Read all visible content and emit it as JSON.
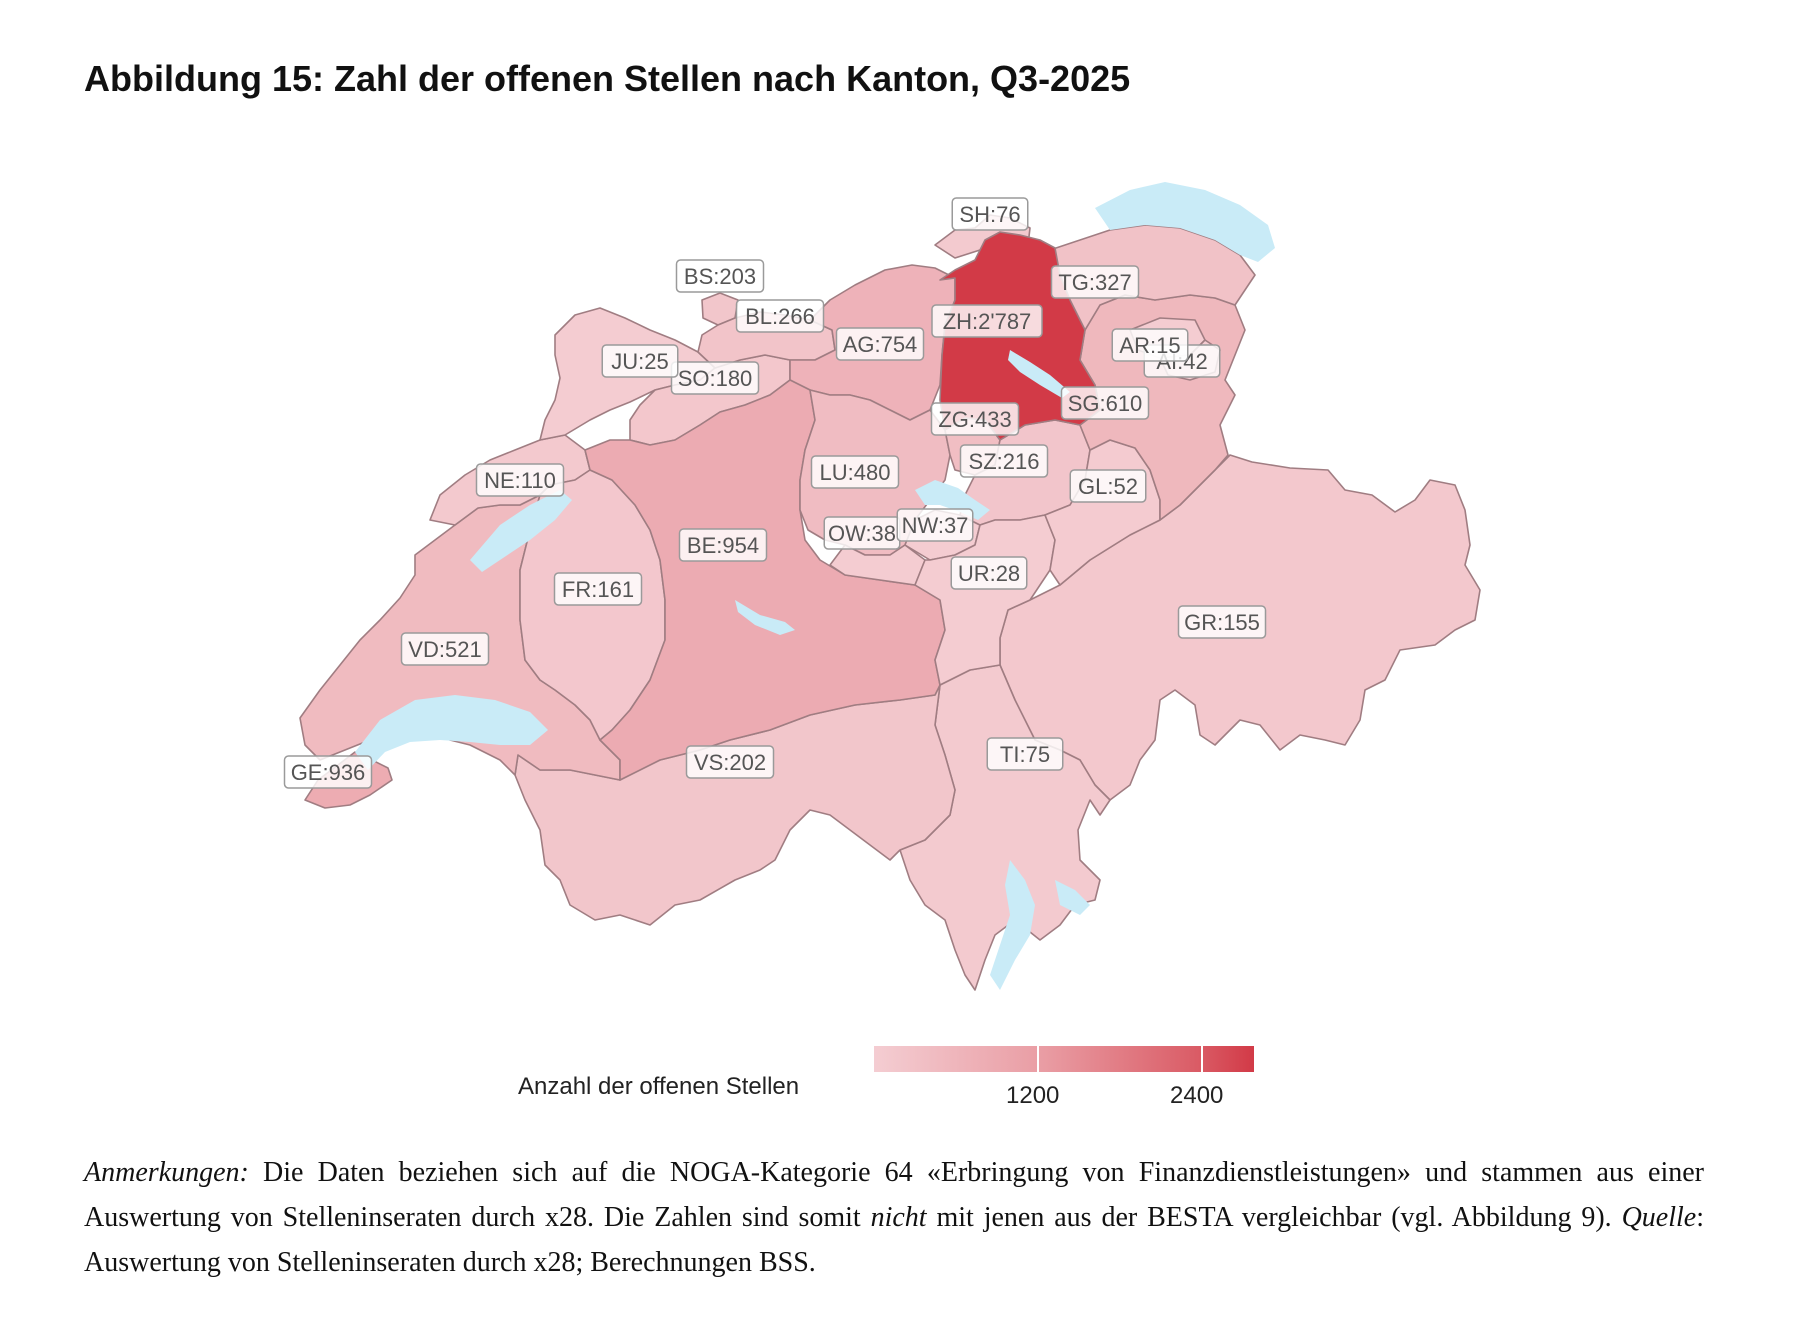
{
  "title": "Abbildung 15: Zahl der offenen Stellen nach Kanton, Q3-2025",
  "colors": {
    "low": "#f4cdd2",
    "mid": "#e99ca3",
    "high": "#d23a47",
    "lake": "#c9ebf7",
    "border": "#a07d82"
  },
  "chart_data": {
    "type": "choropleth",
    "title": "Abbildung 15: Zahl der offenen Stellen nach Kanton, Q3-2025",
    "regions": [
      {
        "code": "ZH",
        "label": "ZH:2'787",
        "value": 2787
      },
      {
        "code": "GE",
        "label": "GE:936",
        "value": 936
      },
      {
        "code": "BE",
        "label": "BE:954",
        "value": 954
      },
      {
        "code": "AG",
        "label": "AG:754",
        "value": 754
      },
      {
        "code": "SG",
        "label": "SG:610",
        "value": 610
      },
      {
        "code": "VD",
        "label": "VD:521",
        "value": 521
      },
      {
        "code": "LU",
        "label": "LU:480",
        "value": 480
      },
      {
        "code": "ZG",
        "label": "ZG:433",
        "value": 433
      },
      {
        "code": "TG",
        "label": "TG:327",
        "value": 327
      },
      {
        "code": "BL",
        "label": "BL:266",
        "value": 266
      },
      {
        "code": "SZ",
        "label": "SZ:216",
        "value": 216
      },
      {
        "code": "BS",
        "label": "BS:203",
        "value": 203
      },
      {
        "code": "VS",
        "label": "VS:202",
        "value": 202
      },
      {
        "code": "SO",
        "label": "SO:180",
        "value": 180
      },
      {
        "code": "FR",
        "label": "FR:161",
        "value": 161
      },
      {
        "code": "GR",
        "label": "GR:155",
        "value": 155
      },
      {
        "code": "NE",
        "label": "NE:110",
        "value": 110
      },
      {
        "code": "SH",
        "label": "SH:76",
        "value": 76
      },
      {
        "code": "TI",
        "label": "TI:75",
        "value": 75
      },
      {
        "code": "GL",
        "label": "GL:52",
        "value": 52
      },
      {
        "code": "AI",
        "label": "AI:42",
        "value": 42
      },
      {
        "code": "OW",
        "label": "OW:38",
        "value": 38
      },
      {
        "code": "NW",
        "label": "NW:37",
        "value": 37
      },
      {
        "code": "UR",
        "label": "UR:28",
        "value": 28
      },
      {
        "code": "JU",
        "label": "JU:25",
        "value": 25
      },
      {
        "code": "AR",
        "label": "AR:15",
        "value": 15
      }
    ],
    "legend": {
      "title": "Anzahl der offenen Stellen",
      "ticks": [
        {
          "label": "1200",
          "value": 1200
        },
        {
          "label": "2400",
          "value": 2400
        }
      ],
      "range": [
        0,
        2787
      ]
    }
  },
  "notes": {
    "anm_label": "Anmerkungen:",
    "text1": " Die Daten beziehen sich auf die NOGA-Kategorie 64 «Erbringung von Finanzdienstleistungen» und stammen aus einer Auswertung von Stelleninseraten durch x28. Die Zahlen sind somit ",
    "nicht": "nicht",
    "text2": " mit jenen aus der BESTA vergleichbar (vgl. Abbildung 9). ",
    "quelle": "Quelle",
    "text3": ": Auswertung von Stelleninseraten durch x28; Berechnungen BSS."
  }
}
